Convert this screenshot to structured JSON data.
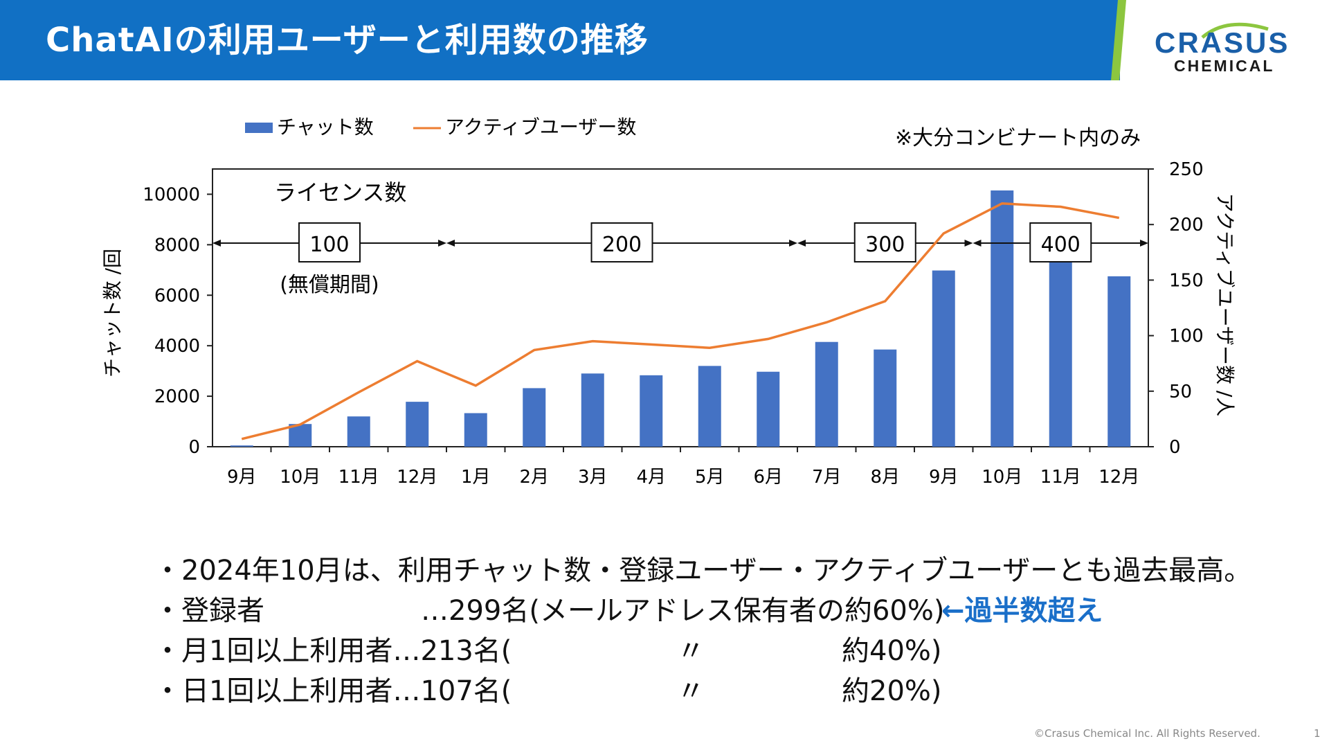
{
  "header": {
    "title": "ChatAIの利用ユーザーと利用数の推移",
    "logo_line1": "CRASUS",
    "logo_line2": "CHEMICAL"
  },
  "colors": {
    "header_blue": "#1170c4",
    "bar_blue": "#4472c4",
    "line_orange": "#ed7d31",
    "stripe_green": "#8cc63f",
    "note_blue": "#1a6fc9"
  },
  "chart_data": {
    "type": "bar+line",
    "categories": [
      "9月",
      "10月",
      "11月",
      "12月",
      "1月",
      "2月",
      "3月",
      "4月",
      "5月",
      "6月",
      "7月",
      "8月",
      "9月",
      "10月",
      "11月",
      "12月"
    ],
    "series": [
      {
        "name": "チャット数",
        "type": "bar",
        "axis": "left",
        "values": [
          50,
          900,
          1200,
          1780,
          1330,
          2320,
          2900,
          2830,
          3200,
          2970,
          4150,
          3850,
          6980,
          10150,
          7300,
          6750
        ]
      },
      {
        "name": "アクティブユーザー数",
        "type": "line",
        "axis": "right",
        "values": [
          7,
          20,
          49,
          77,
          55,
          87,
          95,
          92,
          89,
          97,
          112,
          131,
          192,
          219,
          216,
          206
        ]
      }
    ],
    "ylabel_left": "チャット数 /回",
    "ylabel_right": "アクティブユーザー数 /人",
    "ylim_left": [
      0,
      11000
    ],
    "ylim_right": [
      0,
      250
    ],
    "yticks_left": [
      "0",
      "2000",
      "4000",
      "6000",
      "8000",
      "10000"
    ],
    "yticks_right": [
      "0",
      "50",
      "100",
      "150",
      "200",
      "250"
    ],
    "legend_position": "top-left",
    "note": "※大分コンビナート内のみ",
    "license_title": "ライセンス数",
    "license_periods": [
      {
        "label": "100",
        "sub": "(無償期間)",
        "start": -0.5,
        "end": 3.5
      },
      {
        "label": "200",
        "sub": "",
        "start": 3.5,
        "end": 9.5
      },
      {
        "label": "300",
        "sub": "",
        "start": 9.5,
        "end": 12.5
      },
      {
        "label": "400",
        "sub": "",
        "start": 12.5,
        "end": 15.5
      }
    ]
  },
  "bullets": {
    "line1": "・2024年10月は、利用チャット数・登録ユーザー・アクティブユーザーとも過去最高。",
    "line2_label": "・登録者",
    "line2_value": "…299名(メールアドレス保有者の約60%)",
    "line2_note": "←過半数超え",
    "line3_label": "・月1回以上利用者…213名(",
    "line3_ditto": "〃",
    "line3_pct": "約40%)",
    "line4_label": "・日1回以上利用者…107名(",
    "line4_ditto": "〃",
    "line4_pct": "約20%)"
  },
  "footer": {
    "copyright": "©Crasus Chemical Inc. All Rights Reserved.",
    "page": "1"
  }
}
